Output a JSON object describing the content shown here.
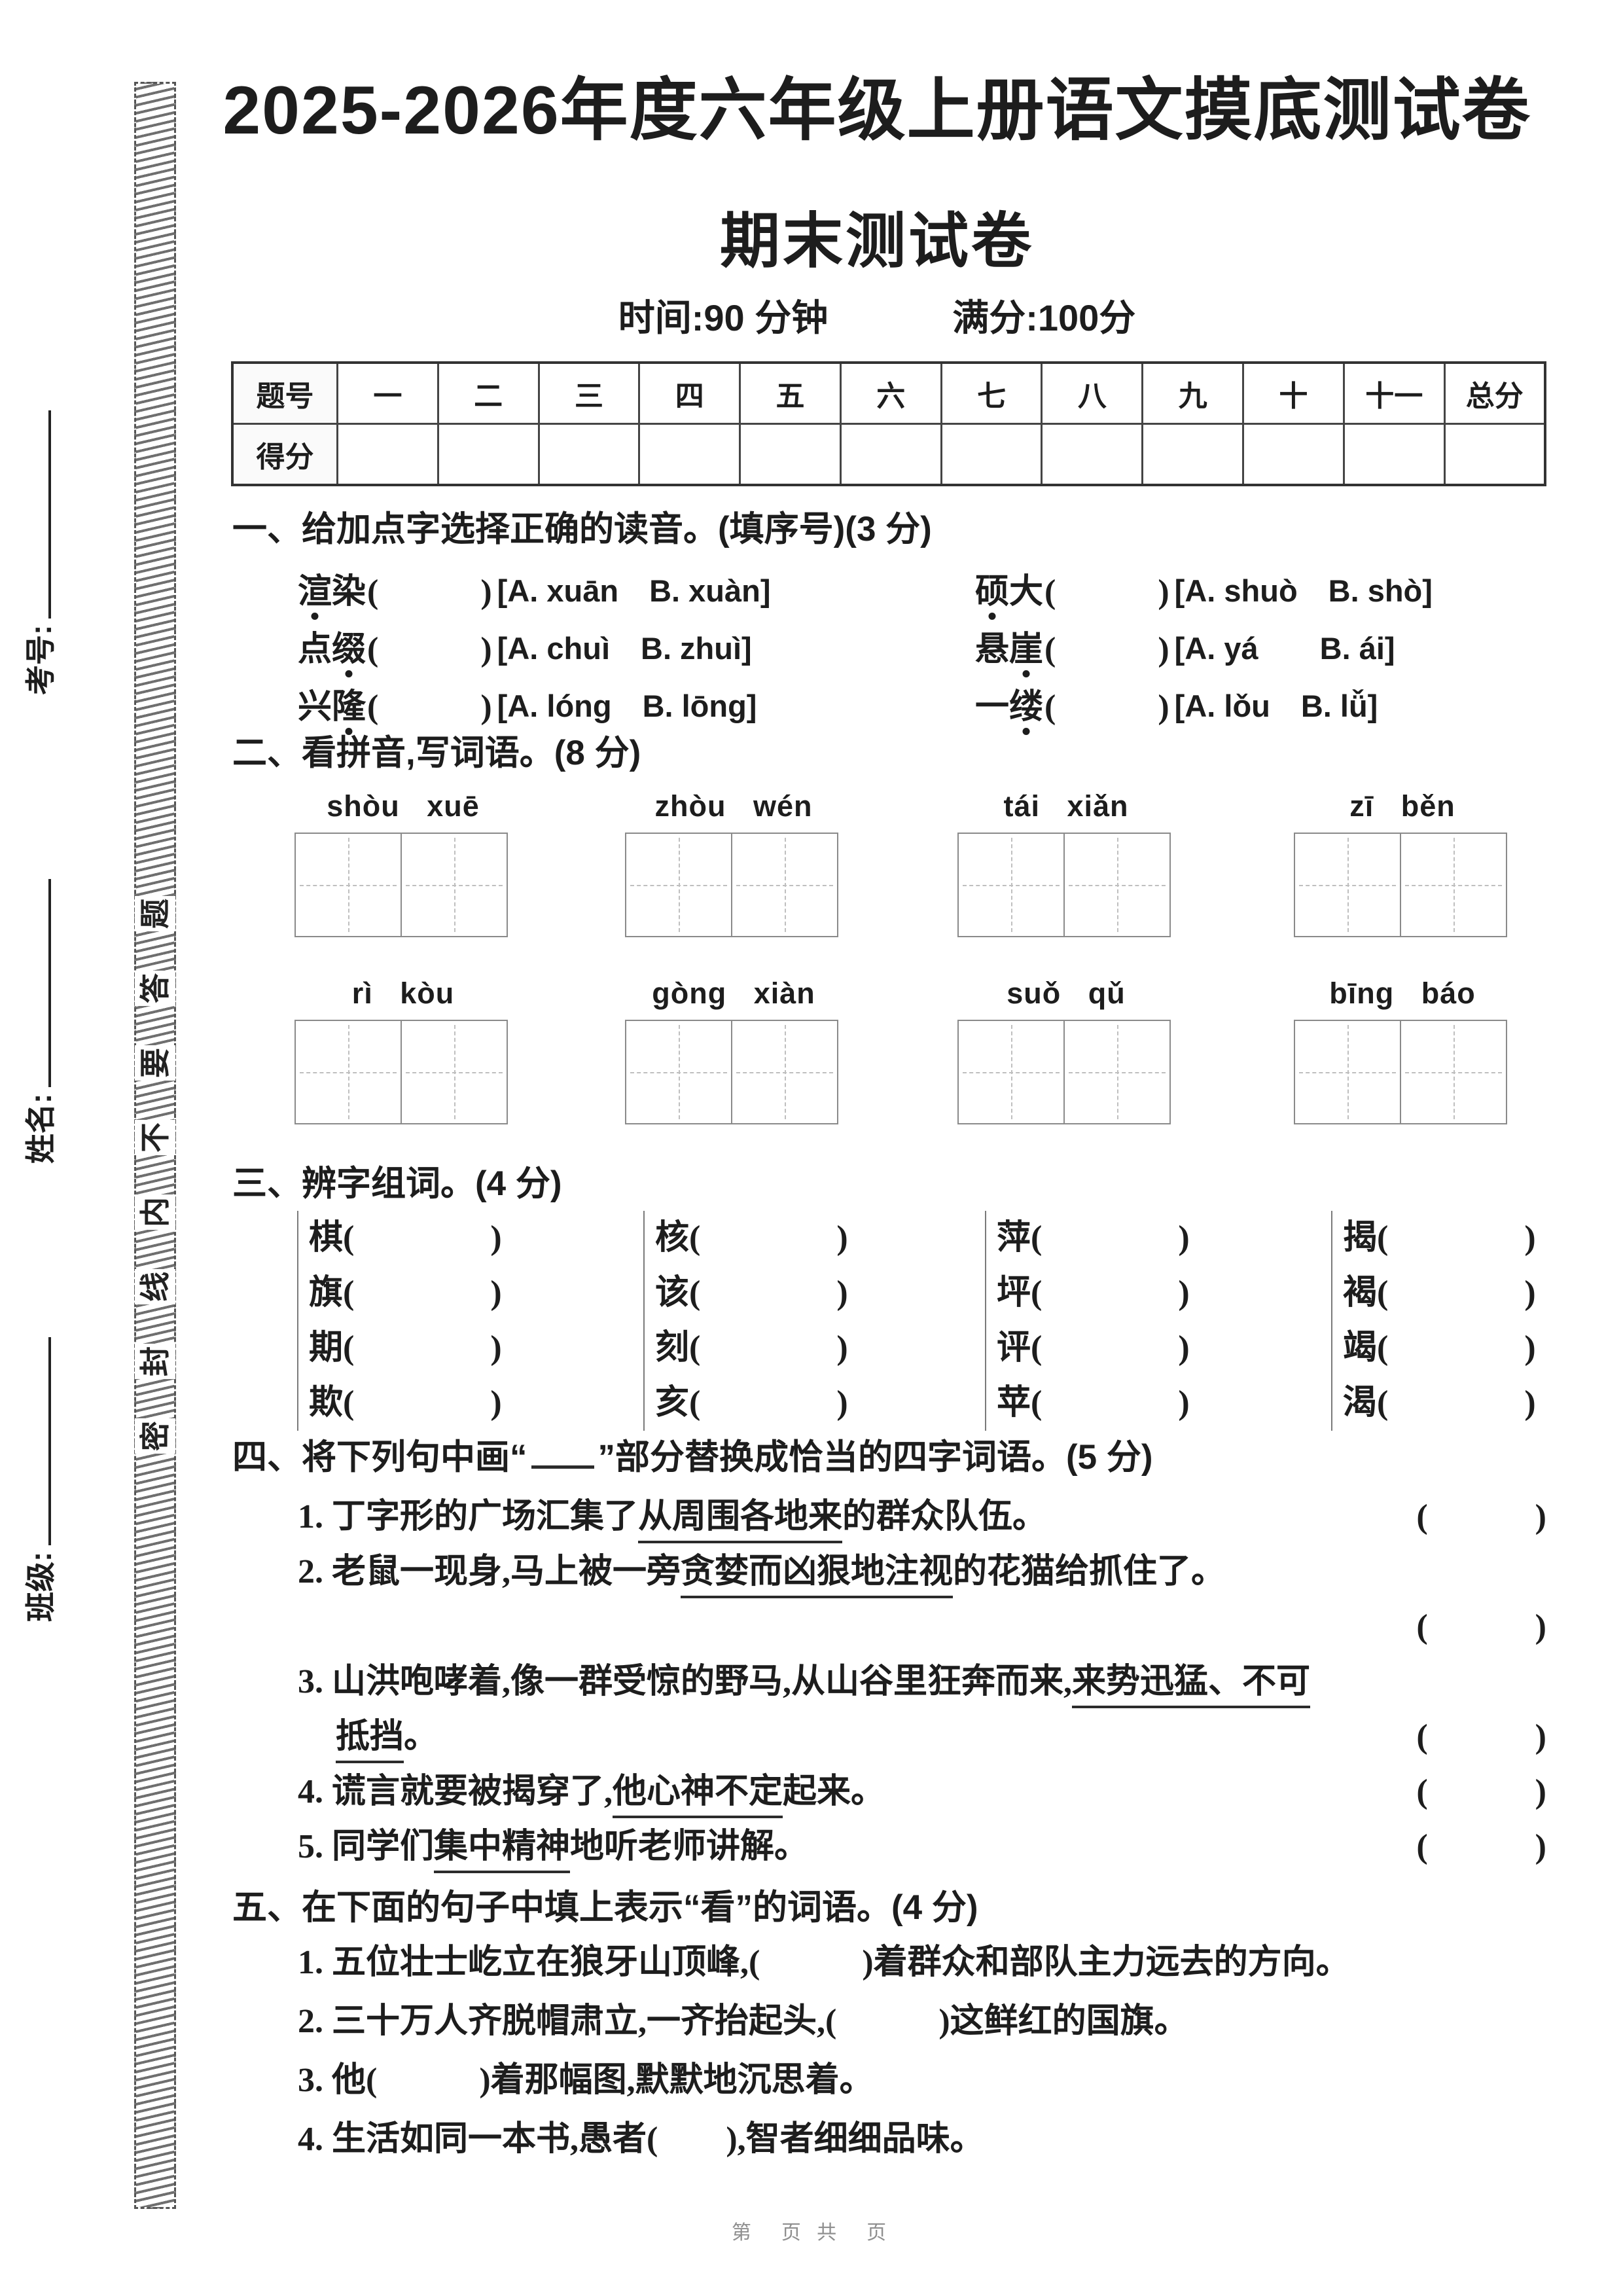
{
  "header": {
    "title": "2025-2026年度六年级上册语文摸底测试卷",
    "subtitle": "期末测试卷",
    "time": "时间:90 分钟",
    "full_score": "满分:100分"
  },
  "sidebar": {
    "fields": [
      {
        "label": "考号:"
      },
      {
        "label": "姓名:"
      },
      {
        "label": "班级:"
      }
    ],
    "seal_text": "密封线内不要答题"
  },
  "score_table": {
    "corner": "题号",
    "columns": [
      "一",
      "二",
      "三",
      "四",
      "五",
      "六",
      "七",
      "八",
      "九",
      "十",
      "十一",
      "总分"
    ],
    "row_label": "得分"
  },
  "sec1": {
    "title": "一、给加点字选择正确的读音。(填序号)(3 分)",
    "paren": "(　　　)",
    "rows": [
      [
        {
          "word": "渲染",
          "dot": 0,
          "opts": "[A. xuān　B. xuàn]"
        },
        {
          "word": "硕大",
          "dot": 0,
          "opts": "[A. shuò　B. shò]"
        }
      ],
      [
        {
          "word": "点缀",
          "dot": 1,
          "opts": "[A. chuì　B. zhuì]"
        },
        {
          "word": "悬崖",
          "dot": 1,
          "opts": "[A. yá　　B. ái]"
        }
      ],
      [
        {
          "word": "兴隆",
          "dot": 1,
          "opts": "[A. lóng　B. lōng]"
        },
        {
          "word": "一缕",
          "dot": 1,
          "opts": "[A. lǒu　B. lǚ]"
        }
      ]
    ]
  },
  "sec2": {
    "title": "二、看拼音,写词语。(8 分)",
    "rows": [
      [
        "shòu xuē",
        "zhòu wén",
        "tái xiǎn",
        "zī běn"
      ],
      [
        "rì kòu",
        "gòng xiàn",
        "suǒ qǔ",
        "bīng báo"
      ]
    ]
  },
  "sec3": {
    "title": "三、辨字组词。(4 分)",
    "paren": "(　　　　)",
    "groups": [
      [
        "棋",
        "旗",
        "期",
        "欺"
      ],
      [
        "核",
        "该",
        "刻",
        "亥"
      ],
      [
        "萍",
        "坪",
        "评",
        "苹"
      ],
      [
        "揭",
        "褐",
        "竭",
        "渴"
      ]
    ]
  },
  "sec4": {
    "title_pre": "四、将下列句中画“",
    "title_post": "”部分替换成恰当的四字词语。(5 分)",
    "bracket": "(　　　)",
    "items": [
      {
        "num": "1.",
        "bracket_line": 0,
        "lines": [
          [
            {
              "t": "丁字形的广场汇集了"
            },
            {
              "t": "从周围各地来",
              "u": true
            },
            {
              "t": "的群众队伍。"
            }
          ]
        ]
      },
      {
        "num": "2.",
        "bracket_line": 1,
        "lines": [
          [
            {
              "t": "老鼠一现身,马上被一旁"
            },
            {
              "t": "贪婪而凶狠地注视",
              "u": true
            },
            {
              "t": "的花猫给抓住了。"
            }
          ],
          []
        ]
      },
      {
        "num": "3.",
        "bracket_line": 1,
        "lines": [
          [
            {
              "t": "山洪咆哮着,像一群受惊的野马,从山谷里狂奔而来,"
            },
            {
              "t": "来势迅猛、不可",
              "u": true
            }
          ],
          [
            {
              "t": "抵挡",
              "u": true
            },
            {
              "t": "。"
            }
          ]
        ]
      },
      {
        "num": "4.",
        "bracket_line": 0,
        "lines": [
          [
            {
              "t": "谎言就要被揭穿了,"
            },
            {
              "t": "他心神不定",
              "u": true
            },
            {
              "t": "起来。"
            }
          ]
        ]
      },
      {
        "num": "5.",
        "bracket_line": 0,
        "lines": [
          [
            {
              "t": "同学们"
            },
            {
              "t": "集中精神",
              "u": true
            },
            {
              "t": "地听老师讲解。"
            }
          ]
        ]
      }
    ]
  },
  "sec5": {
    "title": "五、在下面的句子中填上表示“看”的词语。(4 分)",
    "items": [
      "1. 五位壮士屹立在狼牙山顶峰,(　　　)着群众和部队主力远去的方向。",
      "2. 三十万人齐脱帽肃立,一齐抬起头,(　　　)这鲜红的国旗。",
      "3. 他(　　　)着那幅图,默默地沉思着。",
      "4. 生活如同一本书,愚者(　　),智者细细品味。"
    ]
  },
  "footer": {
    "page_text": "第　页 共　页"
  }
}
